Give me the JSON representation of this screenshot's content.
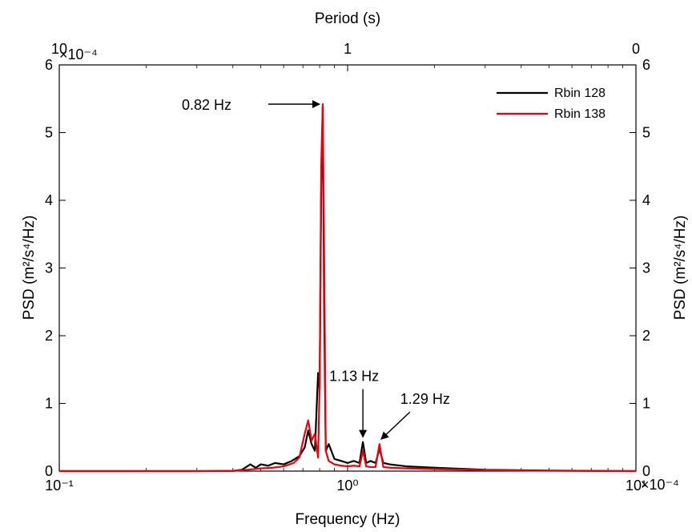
{
  "chart_data": {
    "type": "line",
    "title": "",
    "xlabel": "Frequency (Hz)",
    "x2label": "Period (s)",
    "ylabel": "PSD (m²/s⁴/Hz)",
    "ylabel_right": "PSD (m²/s⁴/Hz)",
    "xscale": "log",
    "xlim": [
      0.1,
      10
    ],
    "ylim": [
      0,
      6
    ],
    "y_multiplier": "×10⁻⁴",
    "x_ticks": [
      {
        "value": 0.1,
        "label": "10⁻¹"
      },
      {
        "value": 1,
        "label": "10⁰"
      },
      {
        "value": 10,
        "label": "10¹"
      }
    ],
    "x2_ticks": [
      {
        "value": 0.1,
        "label": "10"
      },
      {
        "value": 1,
        "label": "1"
      },
      {
        "value": 10,
        "label": "0"
      }
    ],
    "y_ticks": [
      "0",
      "1",
      "2",
      "3",
      "4",
      "5",
      "6"
    ],
    "legend": {
      "position": "top-right"
    },
    "grid": false,
    "series": [
      {
        "name": "Rbin 128",
        "color": "#000000",
        "x": [
          0.1,
          0.3,
          0.4,
          0.43,
          0.46,
          0.48,
          0.5,
          0.53,
          0.56,
          0.6,
          0.64,
          0.68,
          0.71,
          0.73,
          0.75,
          0.77,
          0.79,
          0.8,
          0.81,
          0.82,
          0.83,
          0.84,
          0.86,
          0.9,
          0.95,
          1.0,
          1.05,
          1.1,
          1.13,
          1.16,
          1.2,
          1.25,
          1.29,
          1.33,
          1.4,
          1.6,
          2.0,
          3.0,
          5.0,
          10.0
        ],
        "values": [
          0,
          0,
          0.003,
          0.02,
          0.1,
          0.05,
          0.1,
          0.08,
          0.12,
          0.1,
          0.15,
          0.22,
          0.35,
          0.6,
          0.4,
          0.3,
          1.45,
          1.2,
          4.2,
          5.38,
          2.2,
          0.3,
          0.4,
          0.18,
          0.15,
          0.12,
          0.15,
          0.12,
          0.43,
          0.12,
          0.15,
          0.12,
          0.33,
          0.12,
          0.1,
          0.07,
          0.05,
          0.02,
          0.008,
          0
        ]
      },
      {
        "name": "Rbin 138",
        "color": "#e8000b",
        "x": [
          0.1,
          0.3,
          0.4,
          0.45,
          0.5,
          0.55,
          0.6,
          0.65,
          0.68,
          0.71,
          0.73,
          0.75,
          0.77,
          0.79,
          0.8,
          0.81,
          0.82,
          0.83,
          0.84,
          0.86,
          0.9,
          0.95,
          1.0,
          1.05,
          1.1,
          1.13,
          1.16,
          1.2,
          1.25,
          1.29,
          1.33,
          1.4,
          1.6,
          2.0,
          3.0,
          5.0,
          10.0
        ],
        "values": [
          0,
          0,
          0.003,
          0.02,
          0.04,
          0.05,
          0.07,
          0.12,
          0.2,
          0.55,
          0.75,
          0.45,
          0.55,
          0.2,
          1.3,
          4.5,
          5.42,
          3.0,
          0.3,
          0.15,
          0.1,
          0.08,
          0.07,
          0.08,
          0.07,
          0.3,
          0.07,
          0.06,
          0.06,
          0.4,
          0.06,
          0.05,
          0.04,
          0.03,
          0.015,
          0.005,
          0
        ]
      }
    ],
    "annotations": [
      {
        "text": "0.82 Hz",
        "x": 0.82,
        "y": 5.42
      },
      {
        "text": "1.13 Hz",
        "x": 1.13,
        "y": 0.43
      },
      {
        "text": "1.29 Hz",
        "x": 1.29,
        "y": 0.4
      }
    ]
  }
}
